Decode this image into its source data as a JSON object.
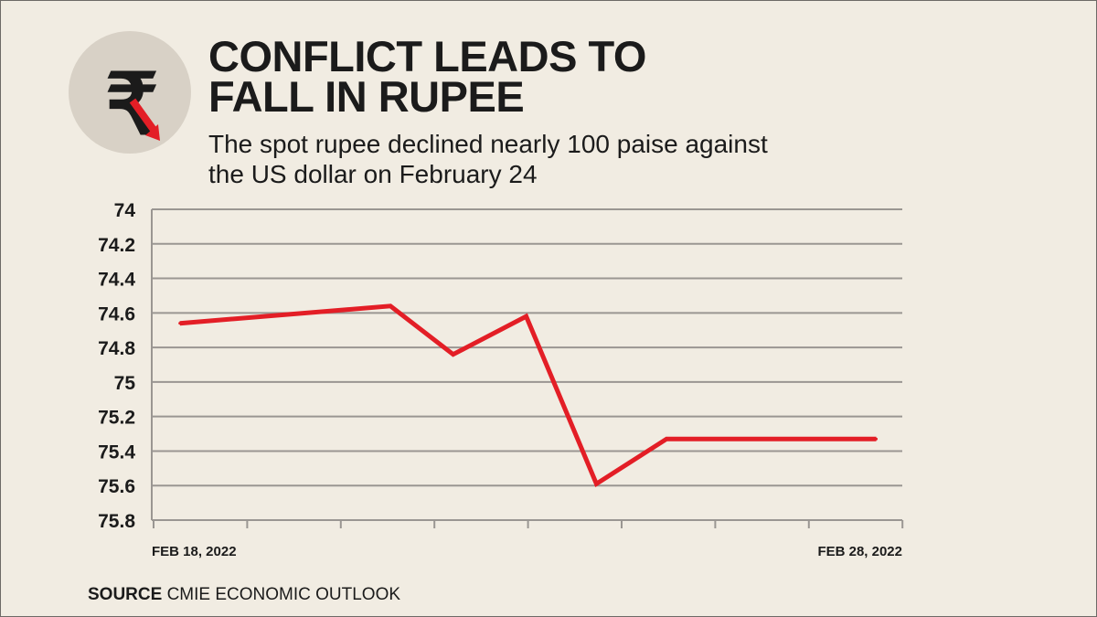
{
  "header": {
    "title_line1": "CONFLICT LEADS TO",
    "title_line2": "FALL IN RUPEE",
    "subtitle_line1": "The spot rupee declined nearly 100 paise against",
    "subtitle_line2": "the US dollar on February 24"
  },
  "logo": {
    "icon": "rupee-falling-arrow-icon",
    "symbol": "₹",
    "circle_color": "#d8d1c6",
    "arrow_color": "#e31e26"
  },
  "source": {
    "label": "SOURCE",
    "text": "CMIE ECONOMIC OUTLOOK"
  },
  "colors": {
    "background": "#f1ece2",
    "line": "#e31e26",
    "grid": "#9a9692",
    "text": "#1b1b1b"
  },
  "chart_data": {
    "type": "line",
    "title": "CONFLICT LEADS TO FALL IN RUPEE",
    "subtitle": "The spot rupee declined nearly 100 paise against the US dollar on February 24",
    "y_ticks": [
      "74",
      "74.2",
      "74.4",
      "74.6",
      "74.8",
      "75",
      "75.2",
      "75.4",
      "75.6",
      "75.8"
    ],
    "ylim": [
      74,
      75.8
    ],
    "y_inverted": true,
    "x_tick_labels": [
      "FEB 18, 2022",
      "FEB 28, 2022"
    ],
    "x_tick_count": 9,
    "grid": true,
    "series": [
      {
        "color": "#e31e26",
        "points": [
          {
            "x": 0.28,
            "y": 74.66
          },
          {
            "x": 2.53,
            "y": 74.56
          },
          {
            "x": 3.2,
            "y": 74.84
          },
          {
            "x": 3.98,
            "y": 74.62
          },
          {
            "x": 4.73,
            "y": 75.59
          },
          {
            "x": 5.48,
            "y": 75.33
          },
          {
            "x": 7.72,
            "y": 75.33
          }
        ]
      }
    ]
  }
}
